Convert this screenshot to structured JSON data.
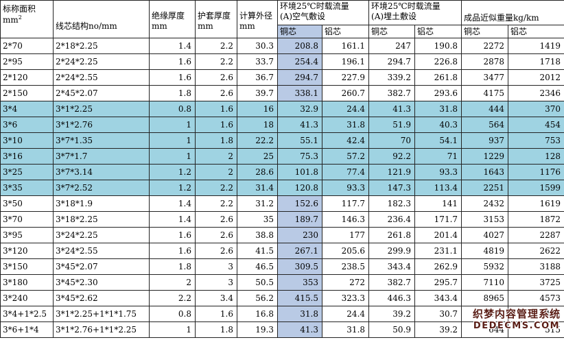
{
  "colors": {
    "row_highlight": "#9FD3E2",
    "column_highlight": "#B9CAE5",
    "watermark_text": "#5A1E16"
  },
  "table": {
    "header": {
      "col_area": {
        "line1": "标称面积",
        "unit_base": "mm",
        "unit_sup": "2"
      },
      "col_structure": {
        "label": "线芯结构no/mm"
      },
      "col_insulation": {
        "line1": "绝缘厚度",
        "line2": "mm"
      },
      "col_sheath": {
        "line1": "护套厚度",
        "line2": "mm"
      },
      "col_diameter": {
        "line1": "计算外径",
        "line2": "mm"
      },
      "group_air": {
        "line1": "环境25℃时载流量",
        "line2": "(A)空气敷设"
      },
      "group_buried": {
        "line1": "环境25℃时载流量",
        "line2": "(A)埋土敷设"
      },
      "group_weight": {
        "label": "成品近似重量kg/km"
      },
      "sub": {
        "copper": "铜芯",
        "aluminum": "铝芯"
      }
    },
    "rows": [
      {
        "area": "2*70",
        "structure": "2*18*2.25",
        "insulation": "1.4",
        "sheath": "2.2",
        "diameter": "30.3",
        "air_cu": "208.8",
        "air_al": "161.1",
        "buried_cu": "247",
        "buried_al": "190.8",
        "weight_cu": "2272",
        "weight_al": "1419",
        "highlight": false
      },
      {
        "area": "2*95",
        "structure": "2*24*2.25",
        "insulation": "1.6",
        "sheath": "2.2",
        "diameter": "33.7",
        "air_cu": "254.4",
        "air_al": "196.1",
        "buried_cu": "294.7",
        "buried_al": "226.8",
        "weight_cu": "2878",
        "weight_al": "1718",
        "highlight": false
      },
      {
        "area": "2*120",
        "structure": "2*24*2.55",
        "insulation": "1.6",
        "sheath": "2.6",
        "diameter": "36.7",
        "air_cu": "294.7",
        "air_al": "227.9",
        "buried_cu": "339.2",
        "buried_al": "261.8",
        "weight_cu": "3477",
        "weight_al": "2012",
        "highlight": false
      },
      {
        "area": "2*150",
        "structure": "2*45*2.07",
        "insulation": "1.8",
        "sheath": "2.6",
        "diameter": "39.7",
        "air_cu": "338.1",
        "air_al": "260.7",
        "buried_cu": "382.7",
        "buried_al": "293.6",
        "weight_cu": "4175",
        "weight_al": "2346",
        "highlight": false
      },
      {
        "area": "3*4",
        "structure": "3*1*2.25",
        "insulation": "0.8",
        "sheath": "1.6",
        "diameter": "16",
        "air_cu": "32.9",
        "air_al": "24.4",
        "buried_cu": "41.3",
        "buried_al": "31.8",
        "weight_cu": "444",
        "weight_al": "370",
        "highlight": true
      },
      {
        "area": "3*6",
        "structure": "3*1*2.76",
        "insulation": "1",
        "sheath": "1.6",
        "diameter": "18",
        "air_cu": "41.3",
        "air_al": "31.8",
        "buried_cu": "51.9",
        "buried_al": "40.3",
        "weight_cu": "564",
        "weight_al": "454",
        "highlight": true
      },
      {
        "area": "3*10",
        "structure": "3*7*1.35",
        "insulation": "1",
        "sheath": "1.8",
        "diameter": "22.2",
        "air_cu": "55.1",
        "air_al": "42.4",
        "buried_cu": "70",
        "buried_al": "54.1",
        "weight_cu": "937",
        "weight_al": "753",
        "highlight": true
      },
      {
        "area": "3*16",
        "structure": "3*7*1.7",
        "insulation": "1",
        "sheath": "2",
        "diameter": "25",
        "air_cu": "75.3",
        "air_al": "57.2",
        "buried_cu": "92.2",
        "buried_al": "71",
        "weight_cu": "1229",
        "weight_al": "128",
        "highlight": true
      },
      {
        "area": "3*25",
        "structure": "3*7*3.14",
        "insulation": "1.2",
        "sheath": "2",
        "diameter": "28.6",
        "air_cu": "101.8",
        "air_al": "77.4",
        "buried_cu": "121.9",
        "buried_al": "93.3",
        "weight_cu": "1643",
        "weight_al": "1176",
        "highlight": true
      },
      {
        "area": "3*35",
        "structure": "3*7*2.52",
        "insulation": "1.2",
        "sheath": "2.2",
        "diameter": "31.4",
        "air_cu": "120.8",
        "air_al": "93.3",
        "buried_cu": "147.3",
        "buried_al": "113.4",
        "weight_cu": "2251",
        "weight_al": "1599",
        "highlight": true
      },
      {
        "area": "3*50",
        "structure": "3*18*1.9",
        "insulation": "1.4",
        "sheath": "2.2",
        "diameter": "31.2",
        "air_cu": "152.6",
        "air_al": "117.7",
        "buried_cu": "182.3",
        "buried_al": "141",
        "weight_cu": "2432",
        "weight_al": "1619",
        "highlight": false
      },
      {
        "area": "3*70",
        "structure": "3*18*2.25",
        "insulation": "1.4",
        "sheath": "2.6",
        "diameter": "35",
        "air_cu": "189.7",
        "air_al": "146.3",
        "buried_cu": "236.4",
        "buried_al": "171.7",
        "weight_cu": "3153",
        "weight_al": "1872",
        "highlight": false
      },
      {
        "area": "3*95",
        "structure": "3*24*2.25",
        "insulation": "1.6",
        "sheath": "2.6",
        "diameter": "38.8",
        "air_cu": "230",
        "air_al": "177",
        "buried_cu": "261.8",
        "buried_al": "201.4",
        "weight_cu": "4027",
        "weight_al": "2287",
        "highlight": false
      },
      {
        "area": "3*120",
        "structure": "3*24*2.55",
        "insulation": "1.6",
        "sheath": "2.6",
        "diameter": "41.5",
        "air_cu": "267.1",
        "air_al": "205.6",
        "buried_cu": "299.9",
        "buried_al": "231.1",
        "weight_cu": "4819",
        "weight_al": "2622",
        "highlight": false
      },
      {
        "area": "3*150",
        "structure": "3*45*2.07",
        "insulation": "1.8",
        "sheath": "3",
        "diameter": "46.5",
        "air_cu": "309.5",
        "air_al": "238.5",
        "buried_cu": "343.4",
        "buried_al": "262.9",
        "weight_cu": "5932",
        "weight_al": "3188",
        "highlight": false
      },
      {
        "area": "3*180",
        "structure": "3*45*2.30",
        "insulation": "2",
        "sheath": "3",
        "diameter": "50.5",
        "air_cu": "353",
        "air_al": "272",
        "buried_cu": "382.7",
        "buried_al": "295.7",
        "weight_cu": "7110",
        "weight_al": "3725",
        "highlight": false
      },
      {
        "area": "3*240",
        "structure": "3*45*2.62",
        "insulation": "2.2",
        "sheath": "3.4",
        "diameter": "56.2",
        "air_cu": "415.5",
        "air_al": "323.3",
        "buried_cu": "446.3",
        "buried_al": "343.4",
        "weight_cu": "8965",
        "weight_al": "4573",
        "highlight": false
      },
      {
        "area": "3*4+1*2.5",
        "structure": "3*1*2.25+1*1*1.75",
        "insulation": "0.8",
        "sheath": "1.6",
        "diameter": "16.8",
        "air_cu": "31.8",
        "air_al": "24.4",
        "buried_cu": "39.2",
        "buried_al": "30.7",
        "weight_cu": "492",
        "weight_al": "403",
        "highlight": false
      },
      {
        "area": "3*6+1*4",
        "structure": "3*1*2.76+1*1*2.25",
        "insulation": "1",
        "sheath": "1.8",
        "diameter": "19.3",
        "air_cu": "41.3",
        "air_al": "31.8",
        "buried_cu": "50.9",
        "buried_al": "39.2",
        "weight_cu": "644",
        "weight_al": "515",
        "highlight": false
      }
    ]
  },
  "watermark": {
    "line1": "织梦内容管理系统",
    "line2": "DEDECMS.COM"
  }
}
